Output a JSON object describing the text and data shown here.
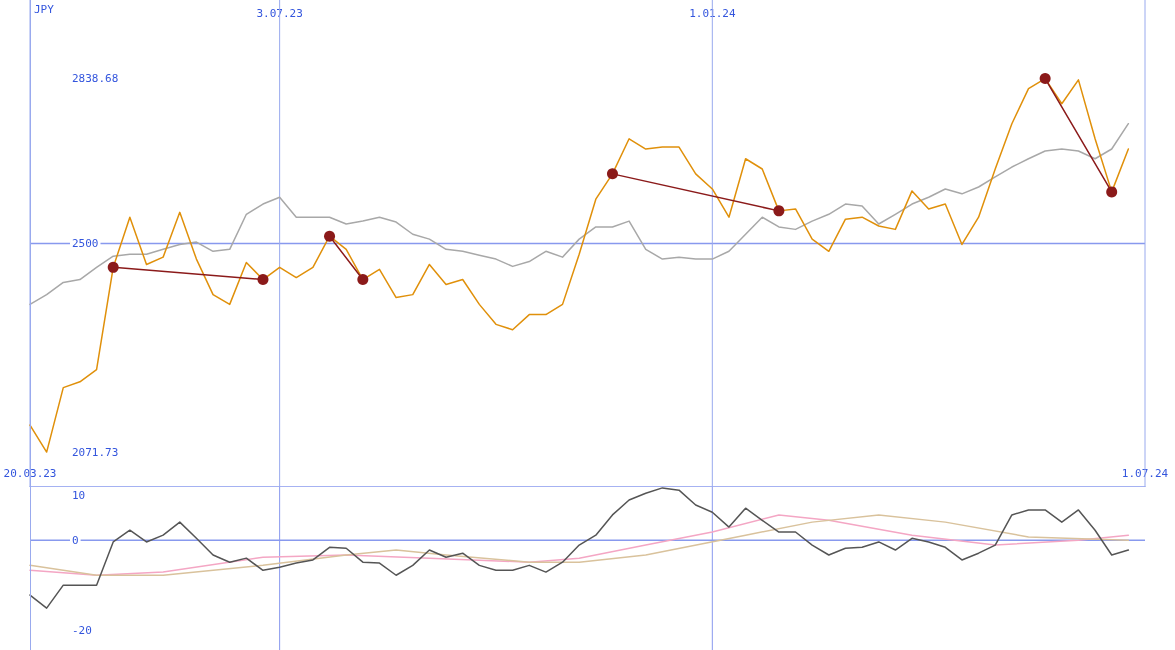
{
  "chart_data": [
    {
      "type": "line",
      "ylabel": "JPY",
      "x": [
        "2023-03-20",
        "2023-03-27",
        "2023-04-03",
        "2023-04-10",
        "2023-04-17",
        "2023-04-24",
        "2023-05-01",
        "2023-05-08",
        "2023-05-15",
        "2023-05-22",
        "2023-05-29",
        "2023-06-05",
        "2023-06-12",
        "2023-06-19",
        "2023-06-26",
        "2023-07-03",
        "2023-07-10",
        "2023-07-17",
        "2023-07-24",
        "2023-07-31",
        "2023-08-07",
        "2023-08-14",
        "2023-08-21",
        "2023-08-28",
        "2023-09-04",
        "2023-09-11",
        "2023-09-18",
        "2023-09-25",
        "2023-10-02",
        "2023-10-09",
        "2023-10-16",
        "2023-10-23",
        "2023-10-30",
        "2023-11-06",
        "2023-11-13",
        "2023-11-20",
        "2023-11-27",
        "2023-12-04",
        "2023-12-11",
        "2023-12-18",
        "2023-12-25",
        "2024-01-01",
        "2024-01-08",
        "2024-01-15",
        "2024-01-22",
        "2024-01-29",
        "2024-02-05",
        "2024-02-12",
        "2024-02-19",
        "2024-02-26",
        "2024-03-04",
        "2024-03-11",
        "2024-03-18",
        "2024-03-25",
        "2024-04-01",
        "2024-04-08",
        "2024-04-15",
        "2024-04-22",
        "2024-04-29",
        "2024-05-06",
        "2024-05-13",
        "2024-05-20",
        "2024-05-27",
        "2024-06-03",
        "2024-06-10",
        "2024-06-17",
        "2024-06-24"
      ],
      "xlim": [
        "2023-03-20",
        "2024-07-01"
      ],
      "xticks": [
        {
          "value": "2023-03-20",
          "label": "20.03.23"
        },
        {
          "value": "2024-07-01",
          "label": "1.07.24"
        }
      ],
      "x2lim": [
        "2023-03-20",
        "2024-07-01"
      ],
      "x2ticks": [
        {
          "value": "2023-07-03",
          "label": "3.07.23"
        },
        {
          "value": "2024-01-01",
          "label": "1.01.24"
        }
      ],
      "ylim": [
        2000,
        3000
      ],
      "yticks": [
        2071.73,
        2500,
        2838.68
      ],
      "grid": "x",
      "marker": "none",
      "ref_lines": [
        {
          "axis": "y",
          "value": 2500
        }
      ],
      "series": [
        {
          "color": "#a8a8a8",
          "values": [
            2375,
            2395,
            2420,
            2426,
            2451,
            2474,
            2478,
            2478,
            2488,
            2498,
            2503,
            2484,
            2488,
            2560,
            2581,
            2595,
            2554,
            2554,
            2554,
            2540,
            2546,
            2554,
            2544,
            2519,
            2509,
            2488,
            2484,
            2476,
            2468,
            2453,
            2463,
            2484,
            2472,
            2509,
            2534,
            2534,
            2546,
            2488,
            2468,
            2472,
            2468,
            2468,
            2484,
            2519,
            2554,
            2534,
            2529,
            2546,
            2560,
            2581,
            2577,
            2540,
            2560,
            2581,
            2595,
            2612,
            2602,
            2616,
            2637,
            2657,
            2674,
            2690,
            2694,
            2690,
            2674,
            2694,
            2746
          ]
        },
        {
          "color": "#e0900a",
          "values": [
            2127,
            2071.73,
            2204,
            2216,
            2241,
            2451,
            2554,
            2457,
            2472,
            2564,
            2468,
            2395,
            2375,
            2461,
            2426,
            2451,
            2430,
            2451,
            2515,
            2488,
            2426,
            2447,
            2389,
            2395,
            2457,
            2416,
            2426,
            2375,
            2334,
            2323,
            2354,
            2354,
            2375,
            2478,
            2591,
            2643,
            2715,
            2694,
            2698,
            2698,
            2643,
            2612,
            2554,
            2674,
            2653,
            2567,
            2571,
            2509,
            2484,
            2550,
            2554,
            2536,
            2529,
            2608,
            2571,
            2581,
            2498,
            2554,
            2653,
            2746,
            2818,
            2838.68,
            2787,
            2836,
            2715,
            2606,
            2694
          ]
        },
        {
          "color": "#8b1a1a",
          "marker": "circle",
          "x": [
            "2023-04-24",
            "2023-06-26"
          ],
          "values": [
            2451,
            2426
          ]
        },
        {
          "color": "#8b1a1a",
          "marker": "circle",
          "x": [
            "2023-07-24",
            "2023-08-07"
          ],
          "values": [
            2515,
            2426
          ]
        },
        {
          "color": "#8b1a1a",
          "marker": "circle",
          "x": [
            "2023-11-20",
            "2024-01-29"
          ],
          "values": [
            2643,
            2567
          ]
        },
        {
          "color": "#8b1a1a",
          "marker": "circle",
          "x": [
            "2024-05-20",
            "2024-06-17"
          ],
          "values": [
            2838.68,
            2606
          ]
        }
      ]
    },
    {
      "type": "line",
      "x": [
        "2023-03-20",
        "2023-03-27",
        "2023-04-03",
        "2023-04-10",
        "2023-04-17",
        "2023-04-24",
        "2023-05-01",
        "2023-05-08",
        "2023-05-15",
        "2023-05-22",
        "2023-05-29",
        "2023-06-05",
        "2023-06-12",
        "2023-06-19",
        "2023-06-26",
        "2023-07-03",
        "2023-07-10",
        "2023-07-17",
        "2023-07-24",
        "2023-07-31",
        "2023-08-07",
        "2023-08-14",
        "2023-08-21",
        "2023-08-28",
        "2023-09-04",
        "2023-09-11",
        "2023-09-18",
        "2023-09-25",
        "2023-10-02",
        "2023-10-09",
        "2023-10-16",
        "2023-10-23",
        "2023-10-30",
        "2023-11-06",
        "2023-11-13",
        "2023-11-20",
        "2023-11-27",
        "2023-12-04",
        "2023-12-11",
        "2023-12-18",
        "2023-12-25",
        "2024-01-01",
        "2024-01-08",
        "2024-01-15",
        "2024-01-22",
        "2024-01-29",
        "2024-02-05",
        "2024-02-12",
        "2024-02-19",
        "2024-02-26",
        "2024-03-04",
        "2024-03-11",
        "2024-03-18",
        "2024-03-25",
        "2024-04-01",
        "2024-04-08",
        "2024-04-15",
        "2024-04-22",
        "2024-04-29",
        "2024-05-06",
        "2024-05-13",
        "2024-05-20",
        "2024-05-27",
        "2024-06-03",
        "2024-06-10",
        "2024-06-17",
        "2024-06-24"
      ],
      "xlim": [
        "2023-03-20",
        "2024-07-01"
      ],
      "ylim": [
        -24.4,
        11.8
      ],
      "yticks": [
        10,
        0,
        -20
      ],
      "tick_labels": "y",
      "marker": "none",
      "ref_lines": [
        {
          "axis": "y",
          "value": 0
        },
        {
          "axis": "x",
          "value": "2023-07-03"
        },
        {
          "axis": "x",
          "value": "2024-01-01"
        }
      ],
      "series": [
        {
          "color": "#f4a6c4",
          "x": [
            "2023-03-20",
            "2023-04-17",
            "2023-05-15",
            "2023-06-26",
            "2023-07-31",
            "2023-09-04",
            "2023-10-16",
            "2023-11-06",
            "2023-12-04",
            "2024-01-01",
            "2024-01-29",
            "2024-02-19",
            "2024-03-25",
            "2024-04-29",
            "2024-06-03",
            "2024-06-24"
          ],
          "values": [
            -6.7,
            -7.8,
            -7.1,
            -3.8,
            -3.3,
            -4,
            -4.9,
            -4,
            -1.1,
            1.8,
            5.6,
            4.4,
            1.1,
            -1.1,
            0,
            1.1
          ]
        },
        {
          "color": "#d9c29c",
          "x": [
            "2023-03-20",
            "2023-04-17",
            "2023-05-15",
            "2023-06-26",
            "2023-07-31",
            "2023-08-21",
            "2023-09-11",
            "2023-10-16",
            "2023-11-06",
            "2023-12-04",
            "2024-01-15",
            "2024-02-12",
            "2024-03-11",
            "2024-04-08",
            "2024-05-13",
            "2024-06-24"
          ],
          "values": [
            -5.6,
            -7.8,
            -7.8,
            -5.6,
            -3.3,
            -2.2,
            -3.3,
            -4.9,
            -4.9,
            -3.3,
            1.1,
            4,
            5.6,
            4,
            0.7,
            0
          ]
        },
        {
          "color": "#555555",
          "values": [
            -12.2,
            -15.1,
            -10,
            -10,
            -10,
            -0.4,
            2.2,
            -0.4,
            1.1,
            4,
            0.4,
            -3.3,
            -4.9,
            -4,
            -6.7,
            -6,
            -5.1,
            -4.4,
            -1.6,
            -1.8,
            -4.9,
            -5.1,
            -7.8,
            -5.6,
            -2.2,
            -3.8,
            -2.9,
            -5.6,
            -6.7,
            -6.7,
            -5.6,
            -7.1,
            -4.9,
            -1.1,
            1.1,
            5.6,
            8.9,
            10.4,
            11.6,
            11.1,
            7.8,
            6.2,
            2.9,
            7.1,
            4.4,
            1.8,
            1.8,
            -1.1,
            -3.3,
            -1.8,
            -1.6,
            -0.4,
            -2.2,
            0.4,
            -0.4,
            -1.6,
            -4.4,
            -2.9,
            -1.1,
            5.6,
            6.7,
            6.7,
            4,
            6.7,
            2.2,
            -3.3,
            -2.2
          ]
        }
      ]
    }
  ]
}
